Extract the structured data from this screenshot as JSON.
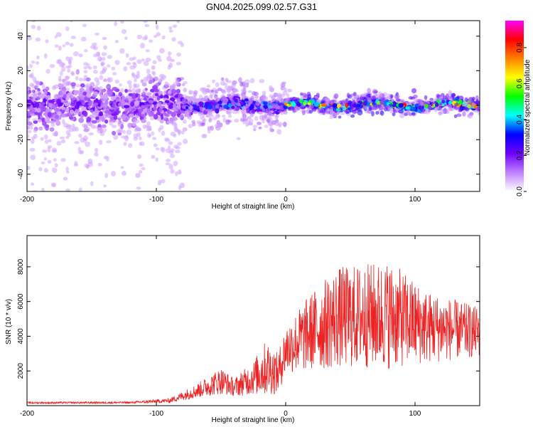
{
  "title": "GN04.2025.099.02.57.G31",
  "chart_data": [
    {
      "type": "heatmap",
      "xlabel": "Height of straight line (km)",
      "ylabel": "Frequency (Hz)",
      "xlim": [
        -200,
        150
      ],
      "ylim": [
        -50,
        49
      ],
      "x_ticks": [
        -200,
        -100,
        0,
        100
      ],
      "y_ticks": [
        -40,
        -20,
        0,
        20,
        40
      ],
      "colorbar": {
        "label": "Normalized spectral amplitude",
        "range": [
          0,
          0.95
        ],
        "ticks": [
          0.0,
          0.2,
          0.4,
          0.6,
          0.8
        ],
        "colors": [
          "#ffffff",
          "#c080ff",
          "#7000ff",
          "#0000ff",
          "#00ffff",
          "#00ff00",
          "#ffff00",
          "#ff8000",
          "#ff0000",
          "#ff00ff"
        ]
      },
      "description_regions": [
        {
          "x_range": [
            -200,
            -80
          ],
          "scatter_hz": 48,
          "peak_amplitude": 0.25
        },
        {
          "x_range": [
            -80,
            0
          ],
          "scatter_hz": 12,
          "peak_amplitude": 0.45
        },
        {
          "x_range": [
            0,
            150
          ],
          "scatter_hz": 5,
          "peak_amplitude": 0.9
        }
      ]
    },
    {
      "type": "line",
      "xlabel": "Height of straight line (km)",
      "ylabel": "SNR (10 * v/v)",
      "xlim": [
        -200,
        150
      ],
      "ylim": [
        0,
        9800
      ],
      "x_ticks": [
        -200,
        -100,
        0,
        100
      ],
      "y_ticks": [
        2000,
        4000,
        6000,
        8000
      ],
      "series_color": "#ee2222",
      "envelope": [
        {
          "x": -200,
          "mean": 150,
          "spread": 80
        },
        {
          "x": -120,
          "mean": 160,
          "spread": 90
        },
        {
          "x": -90,
          "mean": 250,
          "spread": 200
        },
        {
          "x": -70,
          "mean": 700,
          "spread": 600
        },
        {
          "x": -50,
          "mean": 1200,
          "spread": 1200
        },
        {
          "x": -40,
          "mean": 900,
          "spread": 800
        },
        {
          "x": -25,
          "mean": 1300,
          "spread": 1500
        },
        {
          "x": -15,
          "mean": 1700,
          "spread": 2500
        },
        {
          "x": -6,
          "mean": 1500,
          "spread": 1800
        },
        {
          "x": 0,
          "mean": 2800,
          "spread": 2200
        },
        {
          "x": 20,
          "mean": 3600,
          "spread": 3500
        },
        {
          "x": 40,
          "mean": 4200,
          "spread": 4500
        },
        {
          "x": 80,
          "mean": 4300,
          "spread": 4800
        },
        {
          "x": 110,
          "mean": 3900,
          "spread": 3200
        },
        {
          "x": 150,
          "mean": 3800,
          "spread": 2200
        }
      ]
    }
  ]
}
